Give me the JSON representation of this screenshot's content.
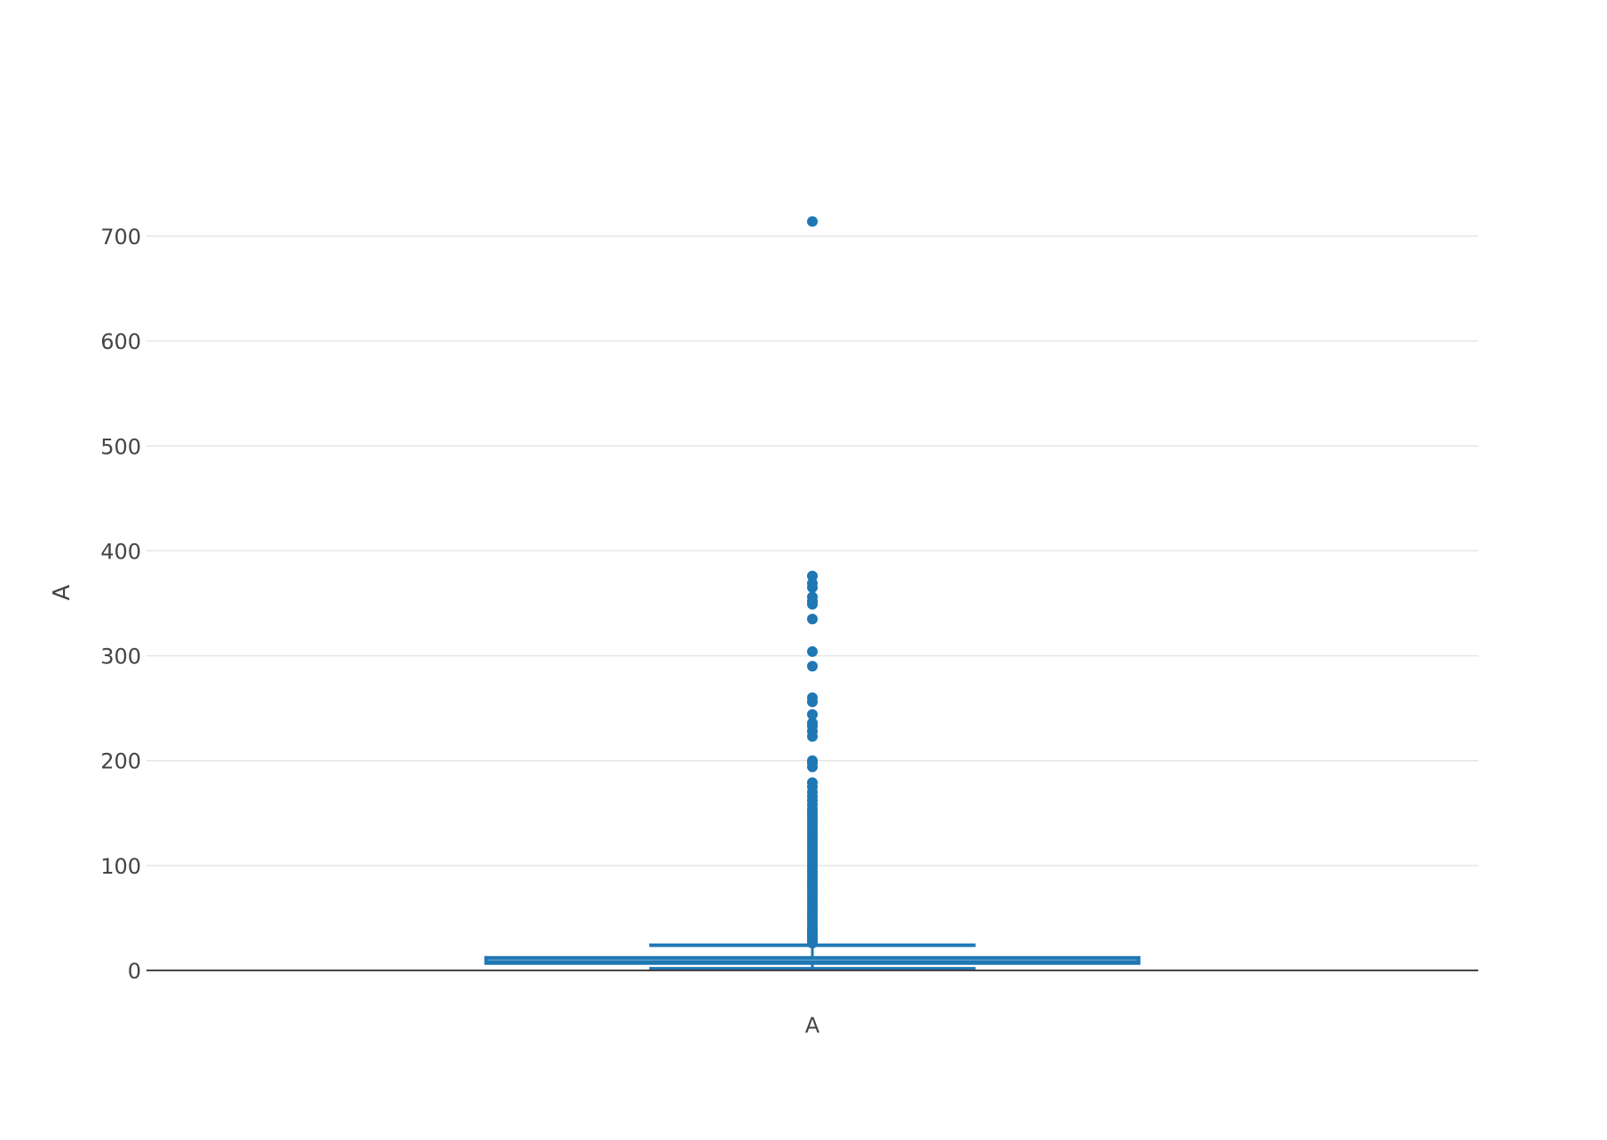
{
  "chart_data": {
    "type": "box",
    "title": "",
    "xlabel": "",
    "ylabel": "A",
    "categories": [
      "A"
    ],
    "ylim": [
      -5,
      725
    ],
    "yticks": [
      0,
      100,
      200,
      300,
      400,
      500,
      600,
      700
    ],
    "grid": true,
    "series": [
      {
        "category": "A",
        "min": 2,
        "q1": 7,
        "median": 8,
        "q3": 12,
        "max": 24,
        "outliers": [
          26,
          28,
          30,
          32,
          34,
          36,
          38,
          40,
          43,
          46,
          49,
          52,
          55,
          58,
          61,
          64,
          67,
          70,
          73,
          76,
          79,
          82,
          85,
          88,
          91,
          94,
          97,
          100,
          103,
          106,
          109,
          112,
          115,
          118,
          121,
          124,
          127,
          130,
          133,
          136,
          139,
          142,
          145,
          148,
          151,
          154,
          158,
          162,
          166,
          170,
          175,
          179,
          194,
          198,
          200,
          223,
          228,
          233,
          236,
          244,
          256,
          260,
          290,
          304,
          335,
          349,
          352,
          356,
          365,
          369,
          376,
          714
        ]
      }
    ],
    "colors": {
      "box": "#1f77b4",
      "box_fill": "#4f8fc8",
      "grid": "#e6e6e6",
      "zero_line": "#444444",
      "text": "#444444"
    }
  }
}
